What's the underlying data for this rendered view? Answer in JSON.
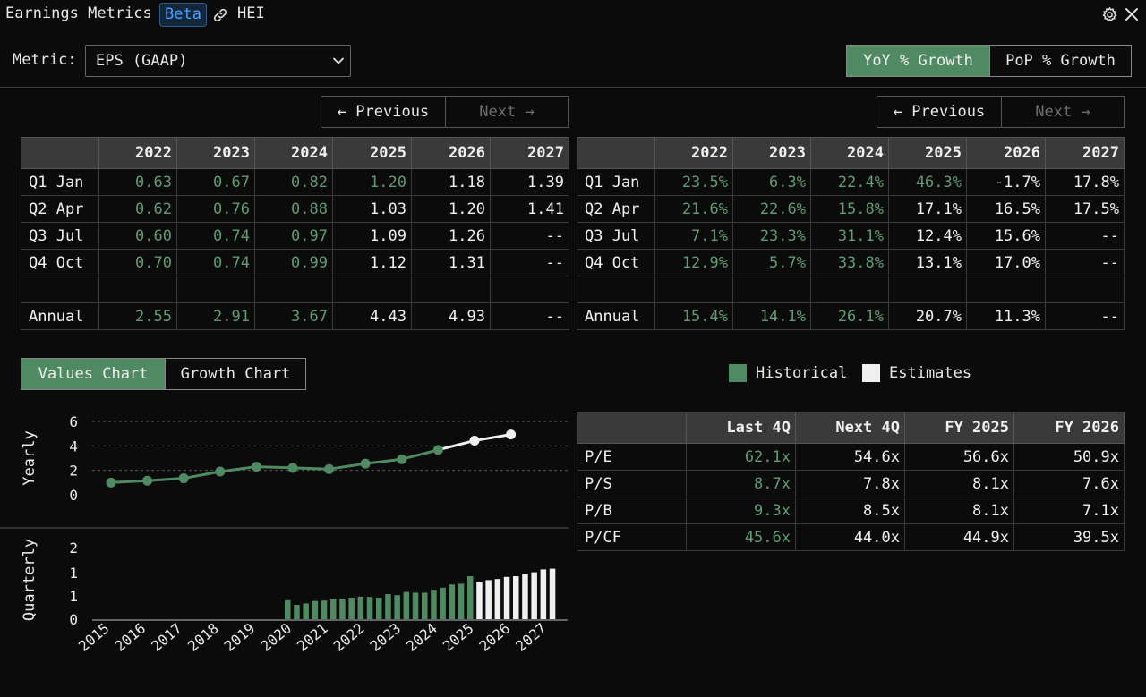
{
  "header": {
    "title": "Earnings Metrics",
    "badge": "Beta",
    "ticker": "HEI",
    "icons": [
      "link-icon",
      "gear-icon",
      "close-icon"
    ]
  },
  "metric": {
    "label": "Metric:",
    "value": "EPS (GAAP)"
  },
  "growth_toggle": {
    "active": "YoY % Growth",
    "inactive": "PoP % Growth"
  },
  "pager_left": {
    "prev": "← Previous",
    "next": "Next →"
  },
  "pager_right": {
    "prev": "← Previous",
    "next": "Next →"
  },
  "colors": {
    "historical": "#4f8a63",
    "estimates": "#f0f0f0",
    "accent": "#4f8a63"
  },
  "values_table": {
    "headers": [
      "",
      "2022",
      "2023",
      "2024",
      "2025",
      "2026",
      "2027"
    ],
    "rows": [
      {
        "label": "Q1 Jan",
        "cells": [
          "0.63",
          "0.67",
          "0.82",
          "1.20",
          "1.18",
          "1.39"
        ],
        "hist": [
          true,
          true,
          true,
          true,
          false,
          false
        ]
      },
      {
        "label": "Q2 Apr",
        "cells": [
          "0.62",
          "0.76",
          "0.88",
          "1.03",
          "1.20",
          "1.41"
        ],
        "hist": [
          true,
          true,
          true,
          false,
          false,
          false
        ]
      },
      {
        "label": "Q3 Jul",
        "cells": [
          "0.60",
          "0.74",
          "0.97",
          "1.09",
          "1.26",
          "--"
        ],
        "hist": [
          true,
          true,
          true,
          false,
          false,
          false
        ]
      },
      {
        "label": "Q4 Oct",
        "cells": [
          "0.70",
          "0.74",
          "0.99",
          "1.12",
          "1.31",
          "--"
        ],
        "hist": [
          true,
          true,
          true,
          false,
          false,
          false
        ]
      }
    ],
    "annual": {
      "label": "Annual",
      "cells": [
        "2.55",
        "2.91",
        "3.67",
        "4.43",
        "4.93",
        "--"
      ],
      "hist": [
        true,
        true,
        true,
        false,
        false,
        false
      ]
    }
  },
  "growth_table": {
    "headers": [
      "",
      "2022",
      "2023",
      "2024",
      "2025",
      "2026",
      "2027"
    ],
    "rows": [
      {
        "label": "Q1 Jan",
        "cells": [
          "23.5%",
          "6.3%",
          "22.4%",
          "46.3%",
          "-1.7%",
          "17.8%"
        ],
        "hist": [
          true,
          true,
          true,
          true,
          false,
          false
        ]
      },
      {
        "label": "Q2 Apr",
        "cells": [
          "21.6%",
          "22.6%",
          "15.8%",
          "17.1%",
          "16.5%",
          "17.5%"
        ],
        "hist": [
          true,
          true,
          true,
          false,
          false,
          false
        ]
      },
      {
        "label": "Q3 Jul",
        "cells": [
          "7.1%",
          "23.3%",
          "31.1%",
          "12.4%",
          "15.6%",
          "--"
        ],
        "hist": [
          true,
          true,
          true,
          false,
          false,
          false
        ]
      },
      {
        "label": "Q4 Oct",
        "cells": [
          "12.9%",
          "5.7%",
          "33.8%",
          "13.1%",
          "17.0%",
          "--"
        ],
        "hist": [
          true,
          true,
          true,
          false,
          false,
          false
        ]
      }
    ],
    "annual": {
      "label": "Annual",
      "cells": [
        "15.4%",
        "14.1%",
        "26.1%",
        "20.7%",
        "11.3%",
        "--"
      ],
      "hist": [
        true,
        true,
        true,
        false,
        false,
        false
      ]
    }
  },
  "chart_toggle": {
    "active": "Values Chart",
    "inactive": "Growth Chart"
  },
  "legend": {
    "historical": "Historical",
    "estimates": "Estimates"
  },
  "valuation_table": {
    "headers": [
      "",
      "Last 4Q",
      "Next 4Q",
      "FY 2025",
      "FY 2026"
    ],
    "rows": [
      {
        "label": "P/E",
        "cells": [
          "62.1x",
          "54.6x",
          "56.6x",
          "50.9x"
        ]
      },
      {
        "label": "P/S",
        "cells": [
          "8.7x",
          "7.8x",
          "8.1x",
          "7.6x"
        ]
      },
      {
        "label": "P/B",
        "cells": [
          "9.3x",
          "8.5x",
          "8.1x",
          "7.1x"
        ]
      },
      {
        "label": "P/CF",
        "cells": [
          "45.6x",
          "44.0x",
          "44.9x",
          "39.5x"
        ]
      }
    ]
  },
  "chart_data": [
    {
      "type": "line",
      "ylabel": "Yearly",
      "ylim": [
        0,
        6
      ],
      "yticks": [
        "0",
        "2",
        "4",
        "6"
      ],
      "grid": true,
      "x": [
        "2015",
        "2016",
        "2017",
        "2018",
        "2019",
        "2020",
        "2021",
        "2022",
        "2023",
        "2024",
        "2025",
        "2026"
      ],
      "values": [
        1.0,
        1.15,
        1.35,
        1.9,
        2.3,
        2.2,
        2.1,
        2.55,
        2.91,
        3.67,
        4.43,
        4.93
      ],
      "estimate_from_index": 10
    },
    {
      "type": "bar",
      "ylabel": "Quarterly",
      "ylim": [
        0,
        2
      ],
      "yticks": [
        "0",
        "1",
        "1",
        "2"
      ],
      "xticks": [
        "2015",
        "2016",
        "2017",
        "2018",
        "2019",
        "2020",
        "2021",
        "2022",
        "2023",
        "2024",
        "2025",
        "2026",
        "2027"
      ],
      "quarters_from": "2020",
      "values": [
        0.53,
        0.4,
        0.44,
        0.51,
        0.52,
        0.55,
        0.57,
        0.6,
        0.63,
        0.62,
        0.6,
        0.7,
        0.67,
        0.76,
        0.74,
        0.74,
        0.82,
        0.88,
        0.97,
        0.99,
        1.2,
        1.03,
        1.09,
        1.12,
        1.18,
        1.2,
        1.26,
        1.31,
        1.39,
        1.41
      ],
      "estimate_from_index": 21
    }
  ]
}
